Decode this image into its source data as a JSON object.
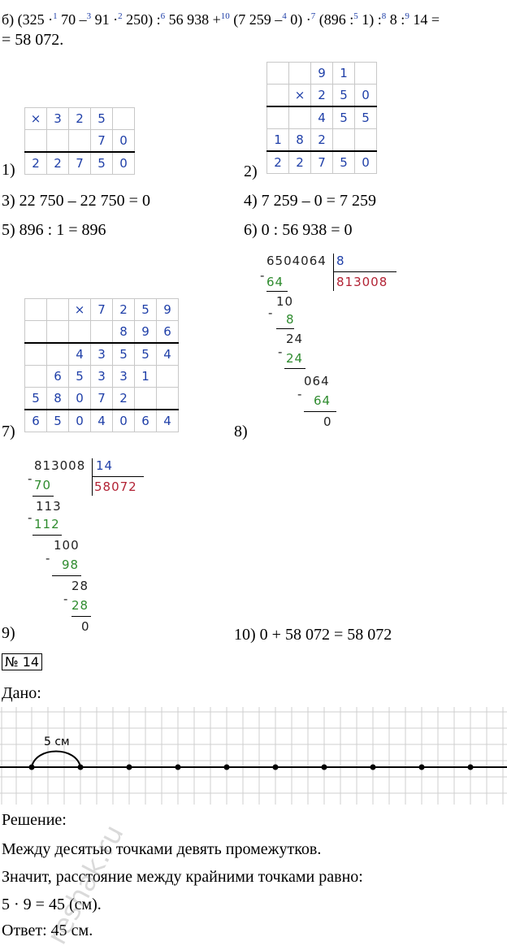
{
  "expression": {
    "prefix": "б) (325 ·",
    "p1": "70 –",
    "p2": "91 ·",
    "p3": "250) :",
    "p4": "56 938 +",
    "p5": "(7 259 –",
    "p6": "0) ·",
    "p7": "(896 :",
    "p8": "1) :",
    "p9": "8 :",
    "p10": "14 =",
    "result_line": "= 58 072.",
    "order_marks": [
      "1",
      "3",
      "2",
      "6",
      "10",
      "4",
      "7",
      "5",
      "8",
      "9"
    ]
  },
  "steps": {
    "s1_label": "1)",
    "s2_label": "2)",
    "s3": "3) 22 750 – 22 750 = 0",
    "s4": "4) 7 259 – 0 = 7 259",
    "s5": "5) 896 : 1 = 896",
    "s6": "6) 0 : 56 938 = 0",
    "s7_label": "7)",
    "s8_label": "8)",
    "s9_label": "9)",
    "s10": "10) 0 + 58 072 = 58 072"
  },
  "mult1": {
    "sign": "×",
    "row1": [
      "3",
      "2",
      "5",
      ""
    ],
    "row2": [
      "",
      "",
      "7",
      "0"
    ],
    "result": [
      "2",
      "2",
      "7",
      "5",
      "0"
    ]
  },
  "mult2": {
    "sign": "×",
    "row1": [
      "9",
      "1",
      ""
    ],
    "row2": [
      "2",
      "5",
      "0"
    ],
    "p1": [
      "4",
      "5",
      "5"
    ],
    "p2": [
      "1",
      "8",
      "2"
    ],
    "result": [
      "2",
      "2",
      "7",
      "5",
      "0"
    ]
  },
  "mult7": {
    "sign": "×",
    "row1": [
      "7",
      "2",
      "5",
      "9"
    ],
    "row2": [
      "8",
      "9",
      "6"
    ],
    "p1": [
      "4",
      "3",
      "5",
      "5",
      "4"
    ],
    "p2": [
      "6",
      "5",
      "3",
      "3",
      "1"
    ],
    "p3": [
      "5",
      "8",
      "0",
      "7",
      "2"
    ],
    "result": [
      "6",
      "5",
      "0",
      "4",
      "0",
      "6",
      "4"
    ]
  },
  "div8": {
    "dividend": "6504064",
    "divisor": "8",
    "quotient": "813008",
    "lines": [
      "64",
      "10",
      "8",
      "24",
      "24",
      "064",
      "64",
      "0"
    ]
  },
  "div9": {
    "dividend": "813008",
    "divisor": "14",
    "quotient": "58072",
    "lines": [
      "70",
      "113",
      "112",
      "100",
      "98",
      "28",
      "28",
      "0"
    ]
  },
  "problem": {
    "number": "№ 14",
    "given": "Дано:",
    "measure_label": "5 см",
    "solution": "Решение:",
    "line1": "Между десятью точками девять промежутков.",
    "line2": "Значит, расстояние между крайними точками равно:",
    "line3": "5 · 9 = 45 (см).",
    "answer": "Ответ: 45 см."
  },
  "watermark": "reshak.ru"
}
